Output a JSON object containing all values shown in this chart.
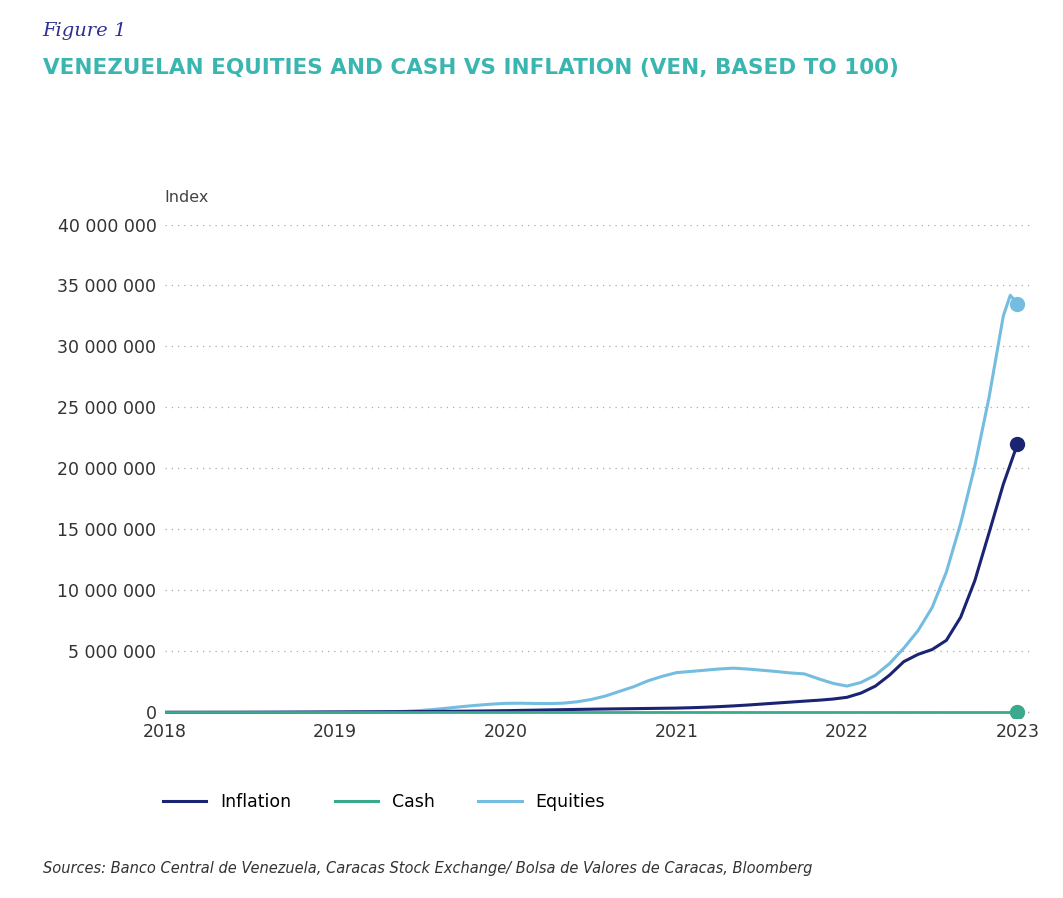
{
  "title_fig": "Figure 1",
  "title_main": "VENEZUELAN EQUITIES AND CASH VS INFLATION (VEN, BASED TO 100)",
  "ylabel": "Index",
  "source_text": "Sources: Banco Central de Venezuela, Caracas Stock Exchange/ Bolsa de Valores de Caracas, Bloomberg",
  "fig1_color": "#2e3192",
  "title_color": "#3ab5b0",
  "background_color": "#ffffff",
  "inflation_color": "#1a2472",
  "cash_color": "#3aaa8c",
  "equities_color": "#74bde0",
  "ylim": [
    -500000,
    40000000
  ],
  "yticks": [
    0,
    5000000,
    10000000,
    15000000,
    20000000,
    25000000,
    30000000,
    35000000,
    40000000
  ],
  "xticks_pos": [
    2018,
    2019,
    2020,
    2021,
    2022,
    2023
  ],
  "xticks_labels": [
    "2018",
    "2019",
    "2020",
    "2021",
    "2022",
    "2023"
  ],
  "inflation_x": [
    2018.0,
    2018.083,
    2018.167,
    2018.25,
    2018.333,
    2018.417,
    2018.5,
    2018.583,
    2018.667,
    2018.75,
    2018.833,
    2018.917,
    2019.0,
    2019.083,
    2019.167,
    2019.25,
    2019.333,
    2019.417,
    2019.5,
    2019.583,
    2019.667,
    2019.75,
    2019.833,
    2019.917,
    2020.0,
    2020.083,
    2020.167,
    2020.25,
    2020.333,
    2020.417,
    2020.5,
    2020.583,
    2020.667,
    2020.75,
    2020.833,
    2020.917,
    2021.0,
    2021.083,
    2021.167,
    2021.25,
    2021.333,
    2021.417,
    2021.5,
    2021.583,
    2021.667,
    2021.75,
    2021.833,
    2021.917,
    2022.0,
    2022.083,
    2022.167,
    2022.25,
    2022.333,
    2022.417,
    2022.5,
    2022.583,
    2022.667,
    2022.75,
    2022.833,
    2022.917,
    2023.0
  ],
  "inflation_y": [
    100,
    180,
    420,
    950,
    2000,
    3600,
    6000,
    9000,
    12500,
    16500,
    21000,
    26000,
    31000,
    36000,
    41000,
    46000,
    51000,
    57000,
    64000,
    72000,
    81000,
    92000,
    104000,
    118000,
    135000,
    155000,
    175000,
    196000,
    216000,
    236000,
    254000,
    271000,
    286000,
    300000,
    315000,
    330000,
    345000,
    375000,
    415000,
    465000,
    525000,
    595000,
    675000,
    755000,
    835000,
    915000,
    990000,
    1085000,
    1230000,
    1580000,
    2150000,
    3050000,
    4150000,
    4750000,
    5150000,
    5900000,
    7800000,
    10800000,
    14700000,
    18700000,
    22000000
  ],
  "cash_x": [
    2018.0,
    2018.5,
    2019.0,
    2019.5,
    2020.0,
    2020.5,
    2021.0,
    2021.5,
    2022.0,
    2022.5,
    2023.0
  ],
  "cash_y": [
    100,
    100,
    100,
    100,
    100,
    100,
    100,
    100,
    100,
    100,
    100
  ],
  "equities_x": [
    2018.0,
    2018.083,
    2018.167,
    2018.25,
    2018.333,
    2018.417,
    2018.5,
    2018.583,
    2018.667,
    2018.75,
    2018.833,
    2018.917,
    2019.0,
    2019.083,
    2019.167,
    2019.25,
    2019.333,
    2019.417,
    2019.5,
    2019.583,
    2019.667,
    2019.75,
    2019.833,
    2019.917,
    2020.0,
    2020.083,
    2020.167,
    2020.25,
    2020.333,
    2020.417,
    2020.5,
    2020.583,
    2020.667,
    2020.75,
    2020.833,
    2020.917,
    2021.0,
    2021.083,
    2021.167,
    2021.25,
    2021.333,
    2021.417,
    2021.5,
    2021.583,
    2021.667,
    2021.75,
    2021.833,
    2021.917,
    2022.0,
    2022.083,
    2022.167,
    2022.25,
    2022.333,
    2022.417,
    2022.5,
    2022.583,
    2022.667,
    2022.75,
    2022.833,
    2022.917,
    2022.958,
    2023.0
  ],
  "equities_y": [
    100,
    140,
    180,
    270,
    450,
    700,
    1100,
    1600,
    2300,
    2900,
    3700,
    4600,
    6000,
    8000,
    11000,
    20000,
    42000,
    80000,
    148000,
    240000,
    355000,
    475000,
    580000,
    670000,
    735000,
    745000,
    725000,
    715000,
    745000,
    860000,
    1050000,
    1330000,
    1720000,
    2100000,
    2580000,
    2950000,
    3250000,
    3350000,
    3450000,
    3550000,
    3620000,
    3550000,
    3450000,
    3350000,
    3230000,
    3150000,
    2750000,
    2380000,
    2150000,
    2450000,
    3050000,
    4000000,
    5250000,
    6700000,
    8600000,
    11500000,
    15500000,
    20200000,
    25800000,
    32500000,
    34200000,
    33500000
  ]
}
